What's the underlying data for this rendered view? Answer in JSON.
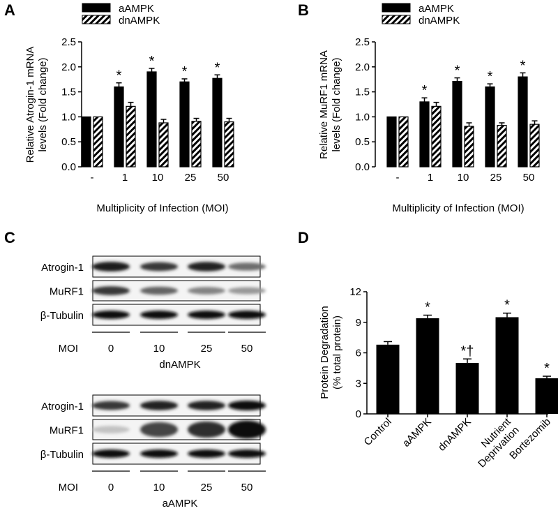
{
  "panels": {
    "a": "A",
    "b": "B",
    "c": "C",
    "d": "D"
  },
  "chart_data": [
    {
      "type": "bar",
      "panel": "A",
      "categories": [
        "-",
        "1",
        "10",
        "25",
        "50"
      ],
      "xlabel": "Multiplicity of Infection (MOI)",
      "ylabel_lines": [
        "Relative Atrogin-1 mRNA",
        "levels (Fold change)"
      ],
      "ylim": [
        0,
        2.5
      ],
      "yticks": [
        "0.0",
        "0.5",
        "1.0",
        "1.5",
        "2.0",
        "2.5"
      ],
      "series": [
        {
          "name": "aAMPK",
          "pattern": "solid",
          "values": [
            1.0,
            1.6,
            1.9,
            1.7,
            1.77
          ],
          "errors": [
            0,
            0.08,
            0.07,
            0.06,
            0.07
          ],
          "marks": [
            "",
            "*",
            "*",
            "*",
            "*"
          ]
        },
        {
          "name": "dnAMPK",
          "pattern": "hatched",
          "values": [
            1.0,
            1.21,
            0.88,
            0.91,
            0.9
          ],
          "errors": [
            0,
            0.08,
            0.07,
            0.06,
            0.07
          ],
          "marks": [
            "",
            "",
            "",
            "",
            ""
          ]
        }
      ]
    },
    {
      "type": "bar",
      "panel": "B",
      "categories": [
        "-",
        "1",
        "10",
        "25",
        "50"
      ],
      "xlabel": "Multiplicity of Infection (MOI)",
      "ylabel_lines": [
        "Relative MuRF1 mRNA",
        "levels (Fold change)"
      ],
      "ylim": [
        0,
        2.5
      ],
      "yticks": [
        "0.0",
        "0.5",
        "1.0",
        "1.5",
        "2.0",
        "2.5"
      ],
      "series": [
        {
          "name": "aAMPK",
          "pattern": "solid",
          "values": [
            1.0,
            1.3,
            1.71,
            1.6,
            1.8
          ],
          "errors": [
            0,
            0.08,
            0.07,
            0.06,
            0.08
          ],
          "marks": [
            "",
            "*",
            "*",
            "*",
            "*"
          ]
        },
        {
          "name": "dnAMPK",
          "pattern": "hatched",
          "values": [
            1.0,
            1.21,
            0.81,
            0.83,
            0.85
          ],
          "errors": [
            0,
            0.08,
            0.07,
            0.05,
            0.07
          ],
          "marks": [
            "",
            "",
            "",
            "",
            ""
          ]
        }
      ]
    },
    {
      "type": "bar",
      "panel": "D",
      "categories": [
        "Control",
        "aAMPK",
        "dnAMPK",
        "Nutrient Deprivation",
        "Bortezomib"
      ],
      "category_lines": [
        [
          "Control"
        ],
        [
          "aAMPK"
        ],
        [
          "dnAMPK"
        ],
        [
          "Nutrient",
          "Deprivation"
        ],
        [
          "Bortezomib"
        ]
      ],
      "ylabel_lines": [
        "Protein Degradation",
        "(% total protein)"
      ],
      "ylim": [
        0,
        12
      ],
      "yticks": [
        "0",
        "3",
        "6",
        "9",
        "12"
      ],
      "series": [
        {
          "name": "",
          "pattern": "solid",
          "values": [
            6.8,
            9.4,
            5.0,
            9.5,
            3.5
          ],
          "errors": [
            0.3,
            0.3,
            0.4,
            0.4,
            0.2
          ],
          "marks": [
            "",
            "*",
            "*†",
            "*",
            "*"
          ]
        }
      ]
    }
  ],
  "blots": {
    "top": {
      "rows": [
        "Atrogin-1",
        "MuRF1",
        "β-Tubulin"
      ],
      "moi_label": "MOI",
      "lanes": [
        "0",
        "10",
        "25",
        "50"
      ],
      "group": "dnAMPK",
      "intensities": [
        [
          0.95,
          0.8,
          0.9,
          0.55
        ],
        [
          0.8,
          0.6,
          0.45,
          0.35
        ],
        [
          1,
          1,
          1,
          1
        ]
      ]
    },
    "bottom": {
      "rows": [
        "Atrogin-1",
        "MuRF1",
        "β-Tubulin"
      ],
      "moi_label": "MOI",
      "lanes": [
        "0",
        "10",
        "25",
        "50"
      ],
      "group": "aAMPK",
      "intensities": [
        [
          0.8,
          0.9,
          0.9,
          1
        ],
        [
          0.15,
          0.75,
          0.85,
          1
        ],
        [
          1,
          1,
          1,
          1
        ]
      ]
    }
  }
}
